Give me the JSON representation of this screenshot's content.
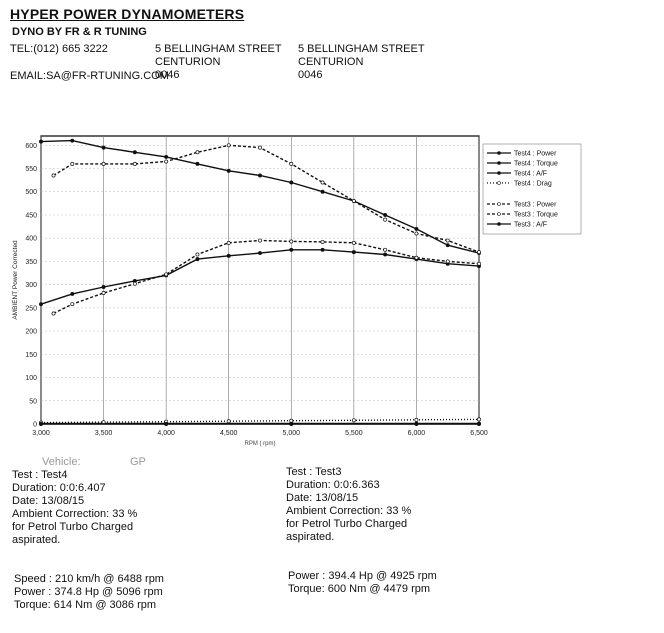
{
  "header": {
    "title": "HYPER POWER DYNAMOMETERS",
    "subtitle": "DYNO BY FR & R TUNING",
    "tel": "TEL:(012) 665 3222",
    "email": "EMAIL:SA@FR-RTUNING.COM",
    "address_left": [
      "5 BELLINGHAM STREET",
      "CENTURION",
      "0046"
    ],
    "address_right": [
      "5 BELLINGHAM STREET",
      "CENTURION",
      "0046"
    ]
  },
  "chart_data": {
    "type": "line",
    "xlabel": "RPM ( rpm)",
    "ylabel": "AMBIENT Power Corrected",
    "xlim": [
      3000,
      6500
    ],
    "ylim": [
      0,
      620
    ],
    "x_ticks": [
      "3,000",
      "3,500",
      "4,000",
      "4,500",
      "5,000",
      "5,500",
      "6,000",
      "6,500"
    ],
    "y_ticks": [
      "0",
      "50",
      "100",
      "150",
      "200",
      "250",
      "300",
      "350",
      "400",
      "450",
      "500",
      "550",
      "600"
    ],
    "legend_position": "right",
    "series": [
      {
        "name": "Test4 : Power",
        "style": "solid",
        "x": [
          3000,
          3250,
          3500,
          3750,
          4000,
          4250,
          4500,
          4750,
          5000,
          5250,
          5500,
          5750,
          6000,
          6250,
          6500
        ],
        "y": [
          258,
          280,
          295,
          308,
          320,
          355,
          362,
          368,
          375,
          375,
          370,
          365,
          355,
          345,
          340
        ]
      },
      {
        "name": "Test4 : Torque",
        "style": "solid",
        "x": [
          3000,
          3250,
          3500,
          3750,
          4000,
          4250,
          4500,
          4750,
          5000,
          5250,
          5500,
          5750,
          6000,
          6250,
          6500
        ],
        "y": [
          608,
          610,
          595,
          585,
          575,
          560,
          545,
          535,
          520,
          500,
          480,
          450,
          420,
          385,
          368
        ]
      },
      {
        "name": "Test4 : A/F",
        "style": "solid",
        "x": [
          3000,
          4000,
          5000,
          6000,
          6500
        ],
        "y": [
          1,
          1,
          1,
          1,
          1
        ]
      },
      {
        "name": "Test4 : Drag",
        "style": "dotted",
        "x": [
          3000,
          3500,
          4000,
          4500,
          5000,
          5500,
          6000,
          6500
        ],
        "y": [
          3,
          4,
          5,
          6,
          7,
          8,
          9,
          10
        ]
      },
      {
        "name": "Test3 : Power",
        "style": "dashed",
        "x": [
          3100,
          3250,
          3500,
          3750,
          4000,
          4250,
          4500,
          4750,
          5000,
          5250,
          5500,
          5750,
          6000,
          6250,
          6500
        ],
        "y": [
          238,
          258,
          282,
          302,
          322,
          365,
          390,
          395,
          393,
          392,
          390,
          375,
          358,
          350,
          345
        ]
      },
      {
        "name": "Test3 : Torque",
        "style": "dashed",
        "x": [
          3100,
          3250,
          3500,
          3750,
          4000,
          4250,
          4500,
          4750,
          5000,
          5250,
          5500,
          5750,
          6000,
          6250,
          6500
        ],
        "y": [
          535,
          560,
          560,
          560,
          565,
          585,
          600,
          595,
          560,
          520,
          480,
          440,
          410,
          395,
          370
        ]
      },
      {
        "name": "Test3 : A/F",
        "style": "solid",
        "x": [
          3000,
          4000,
          5000,
          6000,
          6500
        ],
        "y": [
          0,
          0,
          0,
          0,
          0
        ]
      }
    ]
  },
  "vehicle": {
    "label": "Vehicle:",
    "value": "GP"
  },
  "test_left": {
    "test": "Test   : Test4",
    "duration": "Duration: 0:0:6.407",
    "date": "Date: 13/08/15",
    "ambient": "Ambient Correction: 33 %",
    "for": " for Petrol Turbo Charged",
    "aspirated": "aspirated.",
    "speed": "Speed : 210 km/h @ 6488 rpm",
    "power": "Power : 374.8 Hp @ 5096 rpm",
    "torque": "Torque: 614 Nm @ 3086 rpm"
  },
  "test_right": {
    "test": "Test   : Test3",
    "duration": "Duration: 0:0:6.363",
    "date": "Date: 13/08/15",
    "ambient": "Ambient Correction: 33 %",
    "for": " for Petrol Turbo Charged",
    "aspirated": "aspirated.",
    "power": "Power : 394.4 Hp @ 4925 rpm",
    "torque": "Torque: 600 Nm @ 4479 rpm"
  }
}
